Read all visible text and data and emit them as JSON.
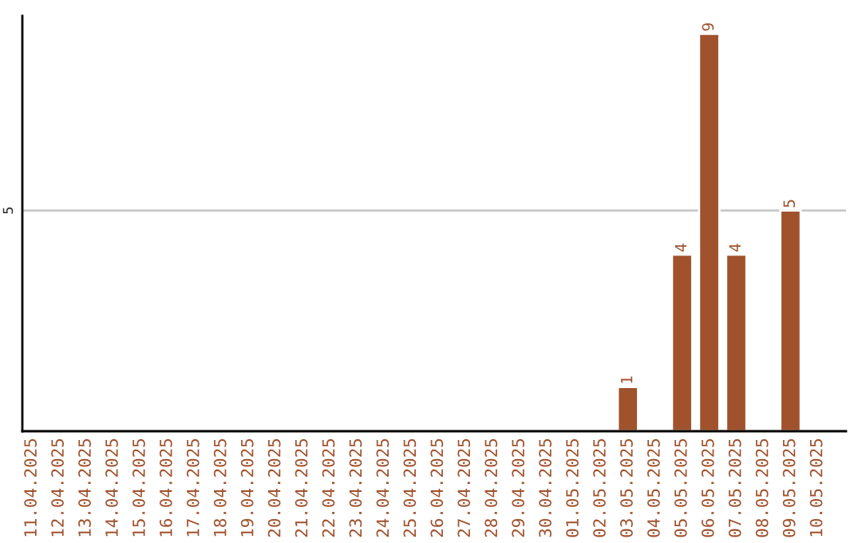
{
  "chart_data": {
    "type": "bar",
    "categories": [
      "11.04.2025",
      "12.04.2025",
      "13.04.2025",
      "14.04.2025",
      "15.04.2025",
      "16.04.2025",
      "17.04.2025",
      "18.04.2025",
      "19.04.2025",
      "20.04.2025",
      "21.04.2025",
      "22.04.2025",
      "23.04.2025",
      "24.04.2025",
      "25.04.2025",
      "26.04.2025",
      "27.04.2025",
      "28.04.2025",
      "29.04.2025",
      "30.04.2025",
      "01.05.2025",
      "02.05.2025",
      "03.05.2025",
      "04.05.2025",
      "05.05.2025",
      "06.05.2025",
      "07.05.2025",
      "08.05.2025",
      "09.05.2025",
      "10.05.2025"
    ],
    "values": [
      null,
      null,
      null,
      null,
      null,
      null,
      null,
      null,
      null,
      null,
      null,
      null,
      null,
      null,
      null,
      null,
      null,
      null,
      null,
      null,
      null,
      null,
      1,
      null,
      4,
      9,
      4,
      null,
      5,
      null
    ],
    "data_labels": true,
    "color": "#a0522d",
    "ref_lines": [
      {
        "axis": "y",
        "value": 5,
        "label": "5",
        "color": "#c8c8c8"
      }
    ]
  }
}
